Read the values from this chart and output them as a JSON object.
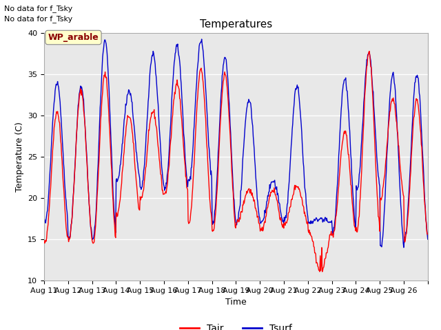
{
  "title": "Temperatures",
  "xlabel": "Time",
  "ylabel": "Temperature (C)",
  "ylim": [
    10,
    40
  ],
  "x_tick_labels": [
    "Aug 11",
    "Aug 12",
    "Aug 13",
    "Aug 14",
    "Aug 15",
    "Aug 16",
    "Aug 17",
    "Aug 18",
    "Aug 19",
    "Aug 20",
    "Aug 21",
    "Aug 22",
    "Aug 23",
    "Aug 24",
    "Aug 25",
    "Aug 26"
  ],
  "annotation_line1": "No data for f_Tsky",
  "annotation_line2": "No data for f_Tsky",
  "box_label": "WP_arable",
  "tair_color": "#FF0000",
  "tsurf_color": "#0000CC",
  "plot_bg_color": "#E8E8E8",
  "fig_bg_color": "#FFFFFF",
  "grid_color": "#FFFFFF",
  "legend_entries": [
    "Tair",
    "Tsurf"
  ],
  "yticks": [
    10,
    15,
    20,
    25,
    30,
    35,
    40
  ],
  "n_days": 16,
  "pts_per_day": 48,
  "daily_maxes_air": [
    30.5,
    33,
    35,
    30,
    30.5,
    34,
    35.5,
    35,
    21,
    21,
    21.5,
    11,
    28,
    37.5,
    32,
    32
  ],
  "daily_mins_air": [
    14.5,
    15,
    14.5,
    18,
    20,
    20.5,
    17,
    16,
    17,
    16,
    17,
    16,
    15.5,
    16,
    20,
    15
  ],
  "daily_maxes_surf": [
    34,
    33.5,
    39,
    33,
    37.5,
    38.5,
    39,
    37,
    32,
    22,
    33.5,
    17.5,
    34.5,
    37.5,
    35,
    35
  ],
  "daily_mins_surf": [
    17,
    15,
    15,
    22,
    21,
    21,
    22,
    17,
    17,
    17,
    17.5,
    17,
    16,
    21,
    14,
    15
  ]
}
